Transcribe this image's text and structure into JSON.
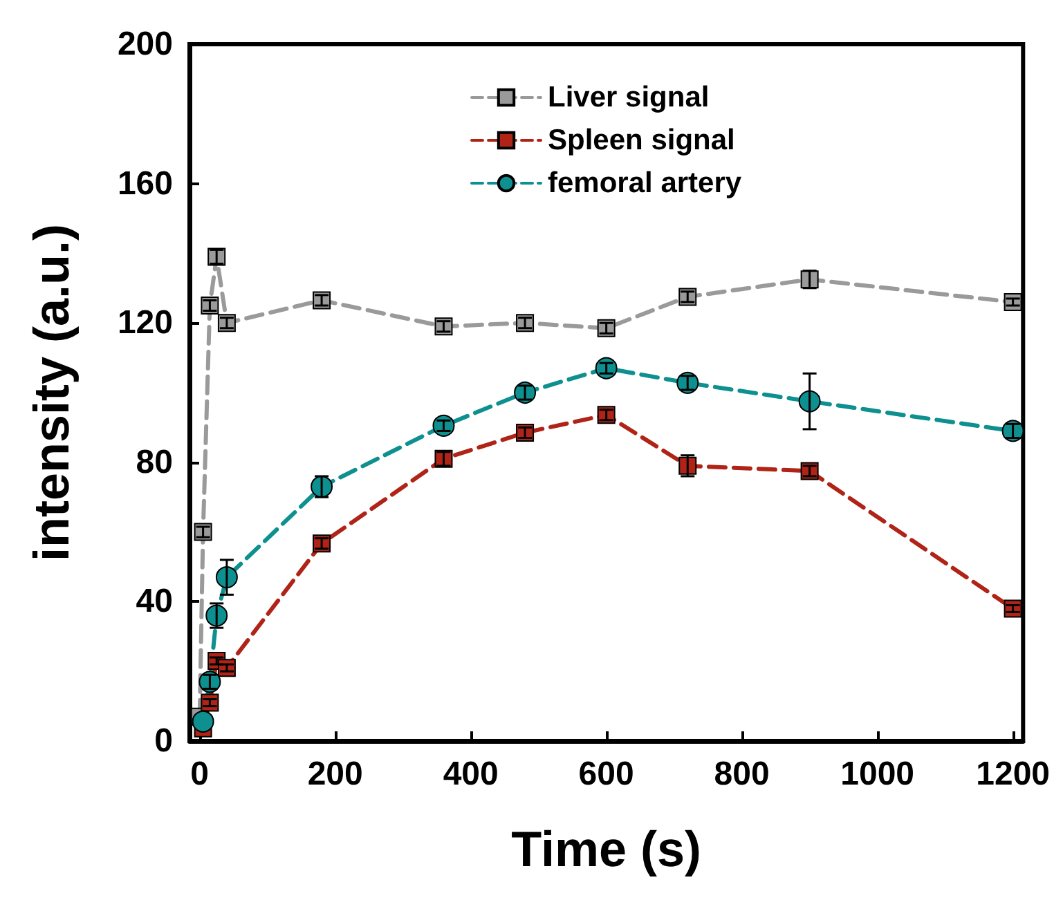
{
  "chart_data": {
    "type": "line",
    "xlabel": "Time (s)",
    "ylabel": "intensity (a.u.)",
    "x": [
      0,
      5,
      15,
      25,
      40,
      180,
      360,
      480,
      600,
      720,
      900,
      1200
    ],
    "series": [
      {
        "name": "Liver signal",
        "color": "#9a9a9a",
        "marker": "square",
        "values": [
          7,
          60,
          125,
          139,
          120,
          126.5,
          119,
          120,
          118.5,
          127.5,
          132.5,
          126
        ],
        "errors": [
          null,
          1.5,
          1.5,
          2,
          1.5,
          1.5,
          1.5,
          1.5,
          1.5,
          1.5,
          2.5,
          1
        ]
      },
      {
        "name": "Spleen signal",
        "color": "#b02418",
        "marker": "square",
        "values": [
          null,
          3.6,
          11,
          23,
          21,
          56.7,
          81,
          88.5,
          93.6,
          79,
          77.5,
          38
        ],
        "errors": [
          null,
          null,
          1,
          1,
          1,
          1.5,
          2,
          1.5,
          1.5,
          3,
          1.5,
          1
        ]
      },
      {
        "name": "femoral artery",
        "color": "#0e9090",
        "marker": "circle",
        "values": [
          null,
          5.6,
          17,
          36,
          47,
          73,
          90.5,
          100,
          107,
          102.8,
          97.5,
          89
        ],
        "errors": [
          null,
          null,
          2,
          3.5,
          5,
          3,
          1.5,
          2,
          1.5,
          2,
          8,
          2
        ]
      }
    ],
    "xlim": [
      -15,
      1215
    ],
    "xticks": [
      0,
      200,
      400,
      600,
      800,
      1000,
      1200
    ],
    "ylim": [
      0,
      200
    ],
    "yticks": [
      0,
      40,
      80,
      120,
      160,
      200
    ],
    "grid": false,
    "legend": "top",
    "line_style": "dashed"
  }
}
